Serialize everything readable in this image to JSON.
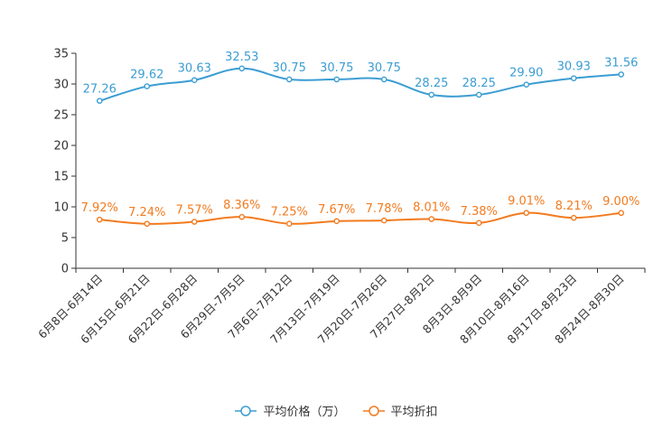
{
  "chart_data": {
    "type": "line",
    "title": "",
    "xlabel": "",
    "ylabel": "",
    "ylim": [
      0,
      35
    ],
    "yticks": [
      0,
      5,
      10,
      15,
      20,
      25,
      30,
      35
    ],
    "categories": [
      "6月8日-6月14日",
      "6月15日-6月21日",
      "6月22日-6月28日",
      "6月29日-7月5日",
      "7月6日-7月12日",
      "7月13日-7月19日",
      "7月20日-7月26日",
      "7月27日-8月2日",
      "8月3日-8月9日",
      "8月10日-8月16日",
      "8月17日-8月23日",
      "8月24日-8月30日"
    ],
    "series": [
      {
        "name": "平均价格（万）",
        "color": "#3b9dd3",
        "values": [
          27.26,
          29.62,
          30.63,
          32.53,
          30.75,
          30.75,
          30.75,
          28.25,
          28.25,
          29.9,
          30.93,
          31.56
        ],
        "labels": [
          "27.26",
          "29.62",
          "30.63",
          "32.53",
          "30.75",
          "30.75",
          "30.75",
          "28.25",
          "28.25",
          "29.90",
          "30.93",
          "31.56"
        ]
      },
      {
        "name": "平均折扣",
        "color": "#f27b1f",
        "values": [
          7.92,
          7.24,
          7.57,
          8.36,
          7.25,
          7.67,
          7.78,
          8.01,
          7.38,
          9.01,
          8.21,
          9.0
        ],
        "labels": [
          "7.92%",
          "7.24%",
          "7.57%",
          "8.36%",
          "7.25%",
          "7.67%",
          "7.78%",
          "8.01%",
          "7.38%",
          "9.01%",
          "8.21%",
          "9.00%"
        ]
      }
    ],
    "grid": false,
    "legend_position": "bottom-center"
  }
}
